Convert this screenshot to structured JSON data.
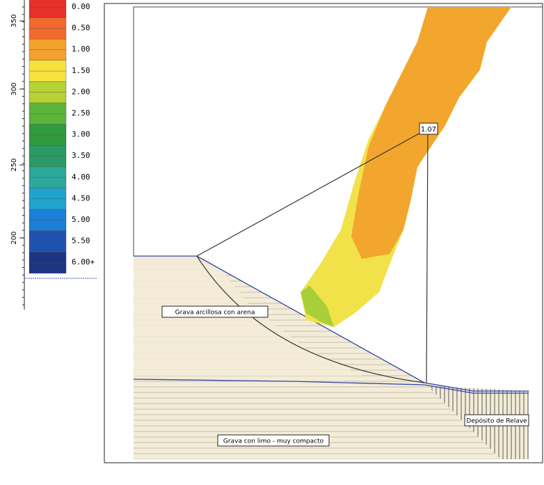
{
  "legend": {
    "items": [
      {
        "label": "0.00",
        "color": "#e8302a"
      },
      {
        "label": "0.50",
        "color": "#f06a2c"
      },
      {
        "label": "1.00",
        "color": "#f4a22e"
      },
      {
        "label": "1.50",
        "color": "#f6e23a"
      },
      {
        "label": "2.00",
        "color": "#b6d234"
      },
      {
        "label": "2.50",
        "color": "#5cb43a"
      },
      {
        "label": "3.00",
        "color": "#2f9a3e"
      },
      {
        "label": "3.50",
        "color": "#2a9a66"
      },
      {
        "label": "4.00",
        "color": "#2aa89a"
      },
      {
        "label": "4.50",
        "color": "#1ea4cf"
      },
      {
        "label": "5.00",
        "color": "#1a7fd6"
      },
      {
        "label": "5.50",
        "color": "#1f52b0"
      },
      {
        "label": "6.00+",
        "color": "#1b3484"
      }
    ]
  },
  "ruler": {
    "labels": [
      "350",
      "300",
      "250",
      "200"
    ]
  },
  "model": {
    "factor": "1.07",
    "layers": [
      "Grava arcillosa con arena",
      "Grava con limo - muy compacto",
      "Depósito de Relave"
    ]
  }
}
